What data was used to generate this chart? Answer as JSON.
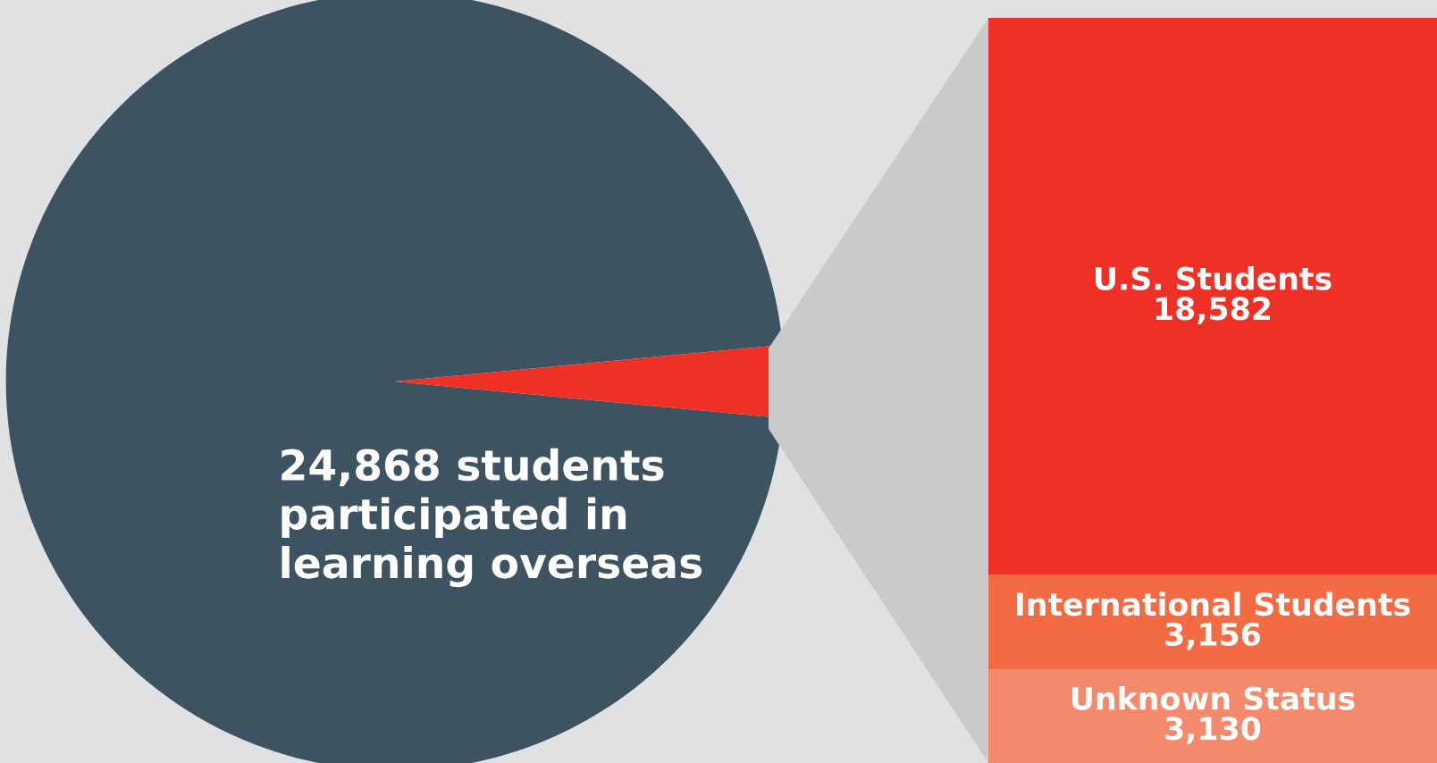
{
  "chart_data": [
    {
      "type": "pie",
      "categories": [
        null,
        null
      ],
      "values": [
        97,
        3
      ],
      "colors": [
        "#3e5361",
        "#ee3124"
      ],
      "annotations": [
        "24,868 students\nparticipated in\nlearning overseas"
      ]
    },
    {
      "type": "bar",
      "categories": [
        null
      ],
      "stacked": true,
      "tick_labels": false,
      "series": [
        {
          "name": "Unknown Status",
          "color": "#f4896b",
          "values": [
            3130
          ],
          "value_labels": [
            "3,130"
          ]
        },
        {
          "name": "International Students",
          "color": "#f26b43",
          "values": [
            3156
          ],
          "value_labels": [
            "3,156"
          ]
        },
        {
          "name": "U.S. Students",
          "color": "#ee3124",
          "values": [
            18582
          ],
          "value_labels": [
            "18,582"
          ]
        }
      ]
    }
  ]
}
